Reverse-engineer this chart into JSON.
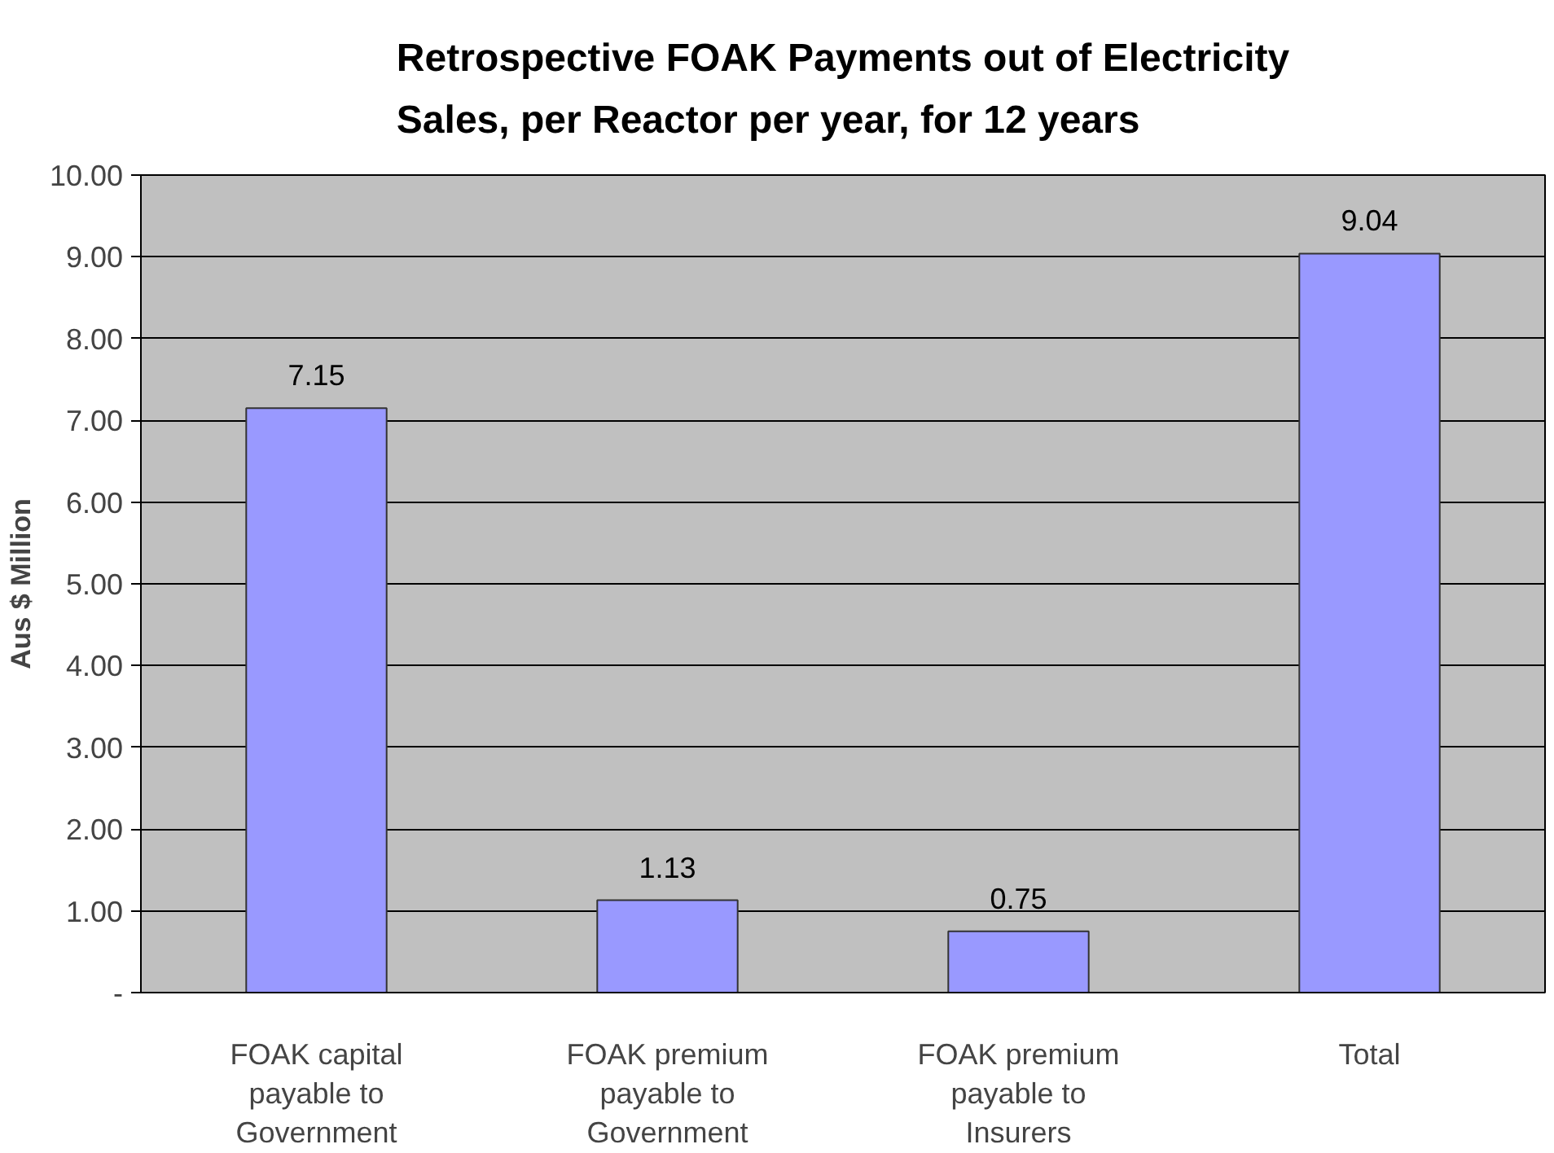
{
  "chart_data": {
    "type": "bar",
    "title": "Retrospective FOAK Payments out of Electricity\nSales, per Reactor per year, for 12 years",
    "ylabel": "Aus $ Million",
    "categories": [
      "FOAK capital\npayable to\nGovernment",
      "FOAK premium\npayable to\nGovernment",
      "FOAK premium\npayable to\nInsurers",
      "Total"
    ],
    "values": [
      7.15,
      1.13,
      0.75,
      9.04
    ],
    "color": "#9999ff",
    "ylim": [
      0,
      10
    ],
    "yticks": [
      {
        "value": 0,
        "label": "-"
      },
      {
        "value": 1,
        "label": "1.00"
      },
      {
        "value": 2,
        "label": "2.00"
      },
      {
        "value": 3,
        "label": "3.00"
      },
      {
        "value": 4,
        "label": "4.00"
      },
      {
        "value": 5,
        "label": "5.00"
      },
      {
        "value": 6,
        "label": "6.00"
      },
      {
        "value": 7,
        "label": "7.00"
      },
      {
        "value": 8,
        "label": "8.00"
      },
      {
        "value": 9,
        "label": "9.00"
      },
      {
        "value": 10,
        "label": "10.00"
      }
    ],
    "grid": "y",
    "data_labels": true
  }
}
